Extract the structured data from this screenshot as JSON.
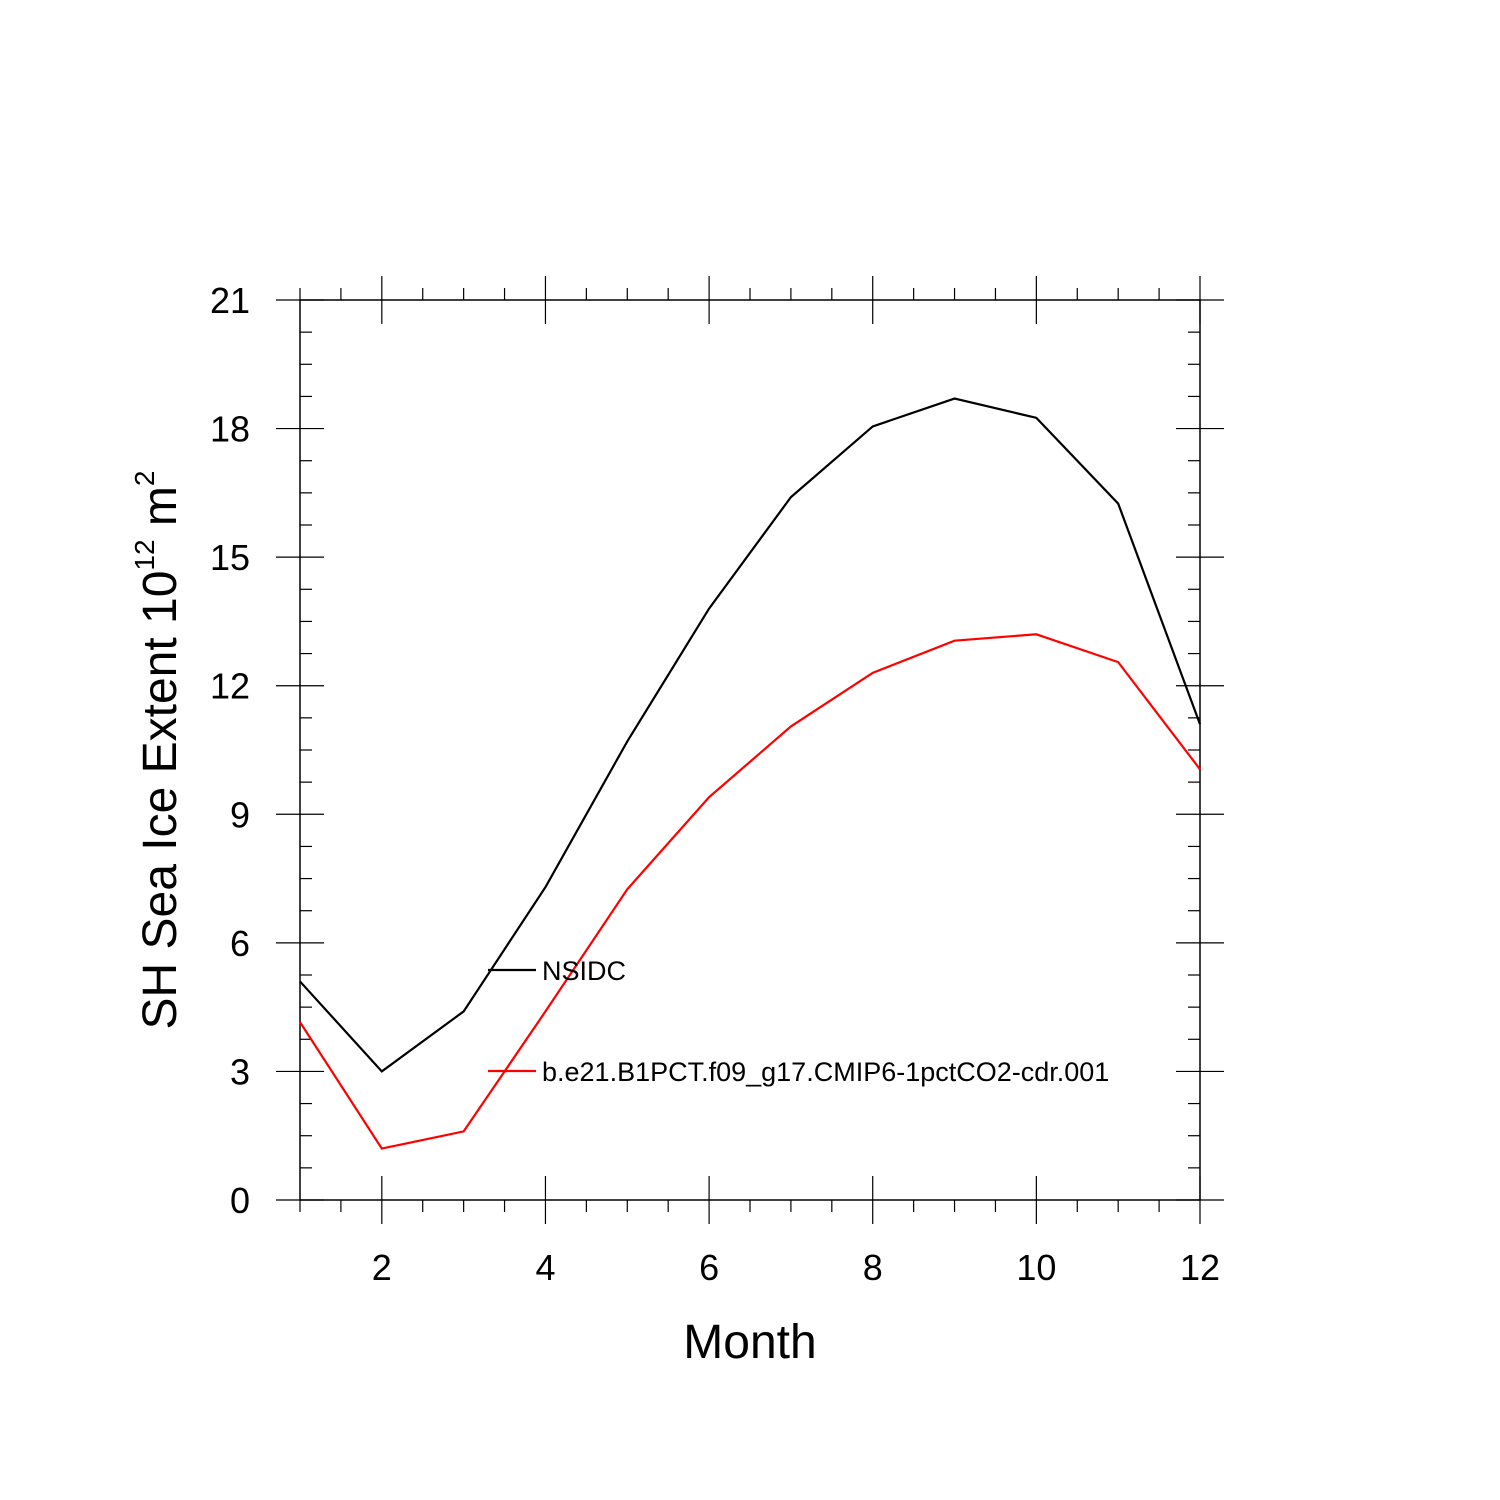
{
  "chart_data": {
    "type": "line",
    "title": "",
    "xlabel": "Month",
    "ylabel": {
      "prefix": "SH Sea Ice Extent 10",
      "exponent1": "12",
      "middle": " m",
      "exponent2": "2"
    },
    "xlim": [
      1,
      12
    ],
    "ylim": [
      0,
      21
    ],
    "xticks": [
      2,
      4,
      6,
      8,
      10,
      12
    ],
    "yticks": [
      0,
      3,
      6,
      9,
      12,
      15,
      18,
      21
    ],
    "x": [
      1,
      2,
      3,
      4,
      5,
      6,
      7,
      8,
      9,
      10,
      11,
      12
    ],
    "series": [
      {
        "name": "NSIDC",
        "color": "#000000",
        "values": [
          5.1,
          3.0,
          4.4,
          7.3,
          10.7,
          13.8,
          16.4,
          18.05,
          18.7,
          18.25,
          16.25,
          11.1
        ]
      },
      {
        "name": "b.e21.B1PCT.f09_g17.CMIP6-1pctCO2-cdr.001",
        "color": "#ff0000",
        "values": [
          4.15,
          1.2,
          1.6,
          4.4,
          7.25,
          9.4,
          11.05,
          12.3,
          13.05,
          13.2,
          12.55,
          10.05
        ]
      }
    ],
    "legend": "inside-lower-left",
    "grid": false
  }
}
